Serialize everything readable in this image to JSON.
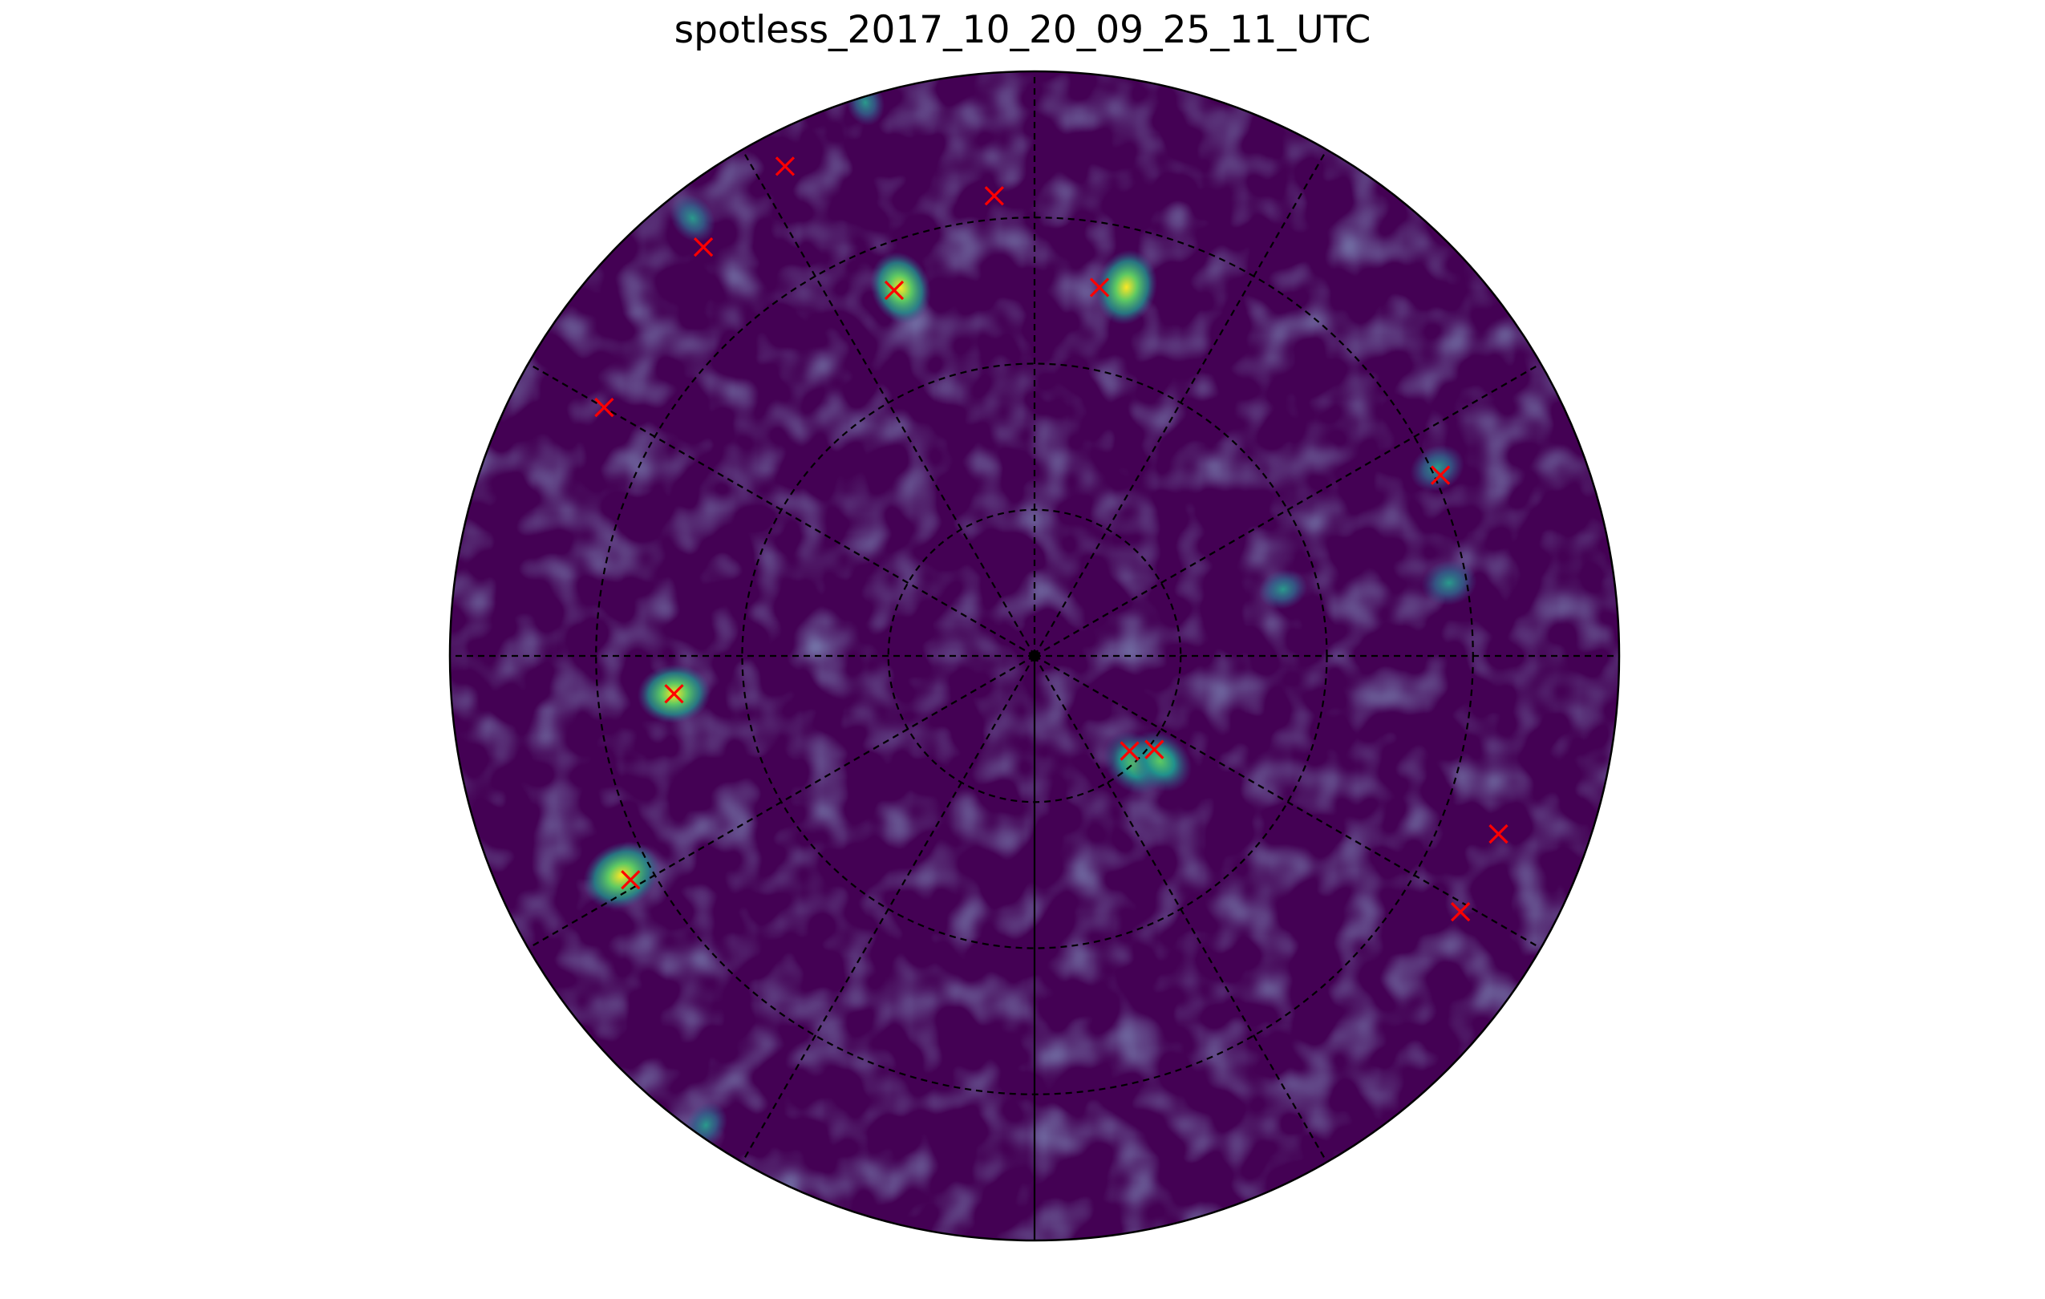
{
  "chart_data": {
    "type": "scatter",
    "projection": "polar-sky",
    "title": "spotless_2017_10_20_09_25_11_UTC",
    "background_colormap": "viridis",
    "colors": {
      "background_low": "#440154",
      "background_mid": "#3b528b",
      "source_mid": "#21918c",
      "source_high": "#5ec962",
      "source_peak": "#fde725",
      "marker": "#ff0000",
      "grid": "#000000"
    },
    "grid": {
      "radial_rings": [
        0.25,
        0.5,
        0.75,
        1.0
      ],
      "spoke_angles_deg": [
        0,
        30,
        60,
        90,
        120,
        150,
        180,
        210,
        240,
        270,
        300,
        330
      ],
      "style": "dashed",
      "solid_spoke_angle_deg": 270
    },
    "marker_symbol": "x",
    "catalog_sources": [
      {
        "r": 0.79,
        "theta": 95
      },
      {
        "r": 0.9,
        "theta": 129
      },
      {
        "r": 0.94,
        "theta": 117
      },
      {
        "r": 0.67,
        "theta": 111
      },
      {
        "r": 0.64,
        "theta": 80
      },
      {
        "r": 0.85,
        "theta": 150
      },
      {
        "r": 0.76,
        "theta": 24
      },
      {
        "r": 0.62,
        "theta": 186
      },
      {
        "r": 0.79,
        "theta": 209
      },
      {
        "r": 0.23,
        "theta": 315
      },
      {
        "r": 0.26,
        "theta": 322
      },
      {
        "r": 0.85,
        "theta": 339
      },
      {
        "r": 0.85,
        "theta": 329
      }
    ],
    "emission_blobs": [
      {
        "r": 0.65,
        "theta": 76,
        "strength": 0.9
      },
      {
        "r": 0.67,
        "theta": 110,
        "strength": 0.85
      },
      {
        "r": 0.62,
        "theta": 186,
        "strength": 0.85
      },
      {
        "r": 0.8,
        "theta": 208,
        "strength": 1.0
      },
      {
        "r": 0.25,
        "theta": 313,
        "strength": 0.75
      },
      {
        "r": 0.28,
        "theta": 320,
        "strength": 0.75
      },
      {
        "r": 0.76,
        "theta": 25,
        "strength": 0.45
      },
      {
        "r": 0.72,
        "theta": 10,
        "strength": 0.45
      },
      {
        "r": 0.44,
        "theta": 15,
        "strength": 0.3
      },
      {
        "r": 0.95,
        "theta": 128,
        "strength": 0.35
      },
      {
        "r": 0.99,
        "theta": 107,
        "strength": 0.25
      },
      {
        "r": 0.98,
        "theta": 235,
        "strength": 0.3
      }
    ]
  }
}
